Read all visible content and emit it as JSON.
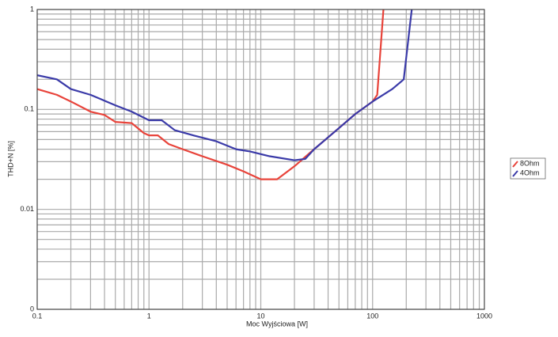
{
  "chart_data": {
    "type": "line",
    "xlabel": "Moc Wyjściowa [W]",
    "ylabel": "THD+N [%]",
    "xscale": "log",
    "yscale": "log",
    "xlim": [
      0.1,
      1000
    ],
    "ylim": [
      0.001,
      1
    ],
    "xticks": [
      0.1,
      1,
      10,
      100,
      1000
    ],
    "yticks": [
      {
        "value": 0.001,
        "label": "0"
      },
      0.01,
      0.1,
      1
    ],
    "xminor": [
      0.2,
      0.3,
      0.4,
      0.5,
      0.6,
      0.7,
      0.8,
      0.9,
      2,
      3,
      4,
      5,
      6,
      7,
      8,
      9,
      20,
      30,
      40,
      50,
      60,
      70,
      80,
      90,
      200,
      300,
      400,
      500,
      600,
      700,
      800,
      900
    ],
    "yminor": [
      0.002,
      0.003,
      0.004,
      0.005,
      0.006,
      0.007,
      0.008,
      0.009,
      0.02,
      0.03,
      0.04,
      0.05,
      0.06,
      0.07,
      0.08,
      0.09,
      0.2,
      0.3,
      0.4,
      0.5,
      0.6,
      0.7,
      0.8,
      0.9
    ],
    "grid": true,
    "legend": "right",
    "series": [
      {
        "name": "8Ohm",
        "color": "#e8433a",
        "x": [
          0.1,
          0.15,
          0.2,
          0.3,
          0.4,
          0.5,
          0.7,
          0.9,
          1.0,
          1.2,
          1.5,
          2,
          3,
          5,
          7,
          10,
          14,
          20,
          30,
          50,
          70,
          100,
          110,
          125
        ],
        "values": [
          0.16,
          0.14,
          0.12,
          0.095,
          0.088,
          0.075,
          0.073,
          0.058,
          0.055,
          0.055,
          0.045,
          0.04,
          0.034,
          0.028,
          0.024,
          0.02,
          0.02,
          0.027,
          0.04,
          0.065,
          0.09,
          0.12,
          0.14,
          1
        ]
      },
      {
        "name": "4Ohm",
        "color": "#3a3aa8",
        "x": [
          0.1,
          0.15,
          0.2,
          0.3,
          0.5,
          0.7,
          1.0,
          1.3,
          1.7,
          2.5,
          4,
          6,
          8,
          12,
          20,
          25,
          30,
          50,
          70,
          100,
          150,
          190,
          224
        ],
        "values": [
          0.22,
          0.2,
          0.16,
          0.14,
          0.11,
          0.095,
          0.078,
          0.078,
          0.062,
          0.055,
          0.048,
          0.04,
          0.038,
          0.034,
          0.031,
          0.032,
          0.04,
          0.065,
          0.09,
          0.12,
          0.16,
          0.2,
          1
        ]
      }
    ]
  }
}
